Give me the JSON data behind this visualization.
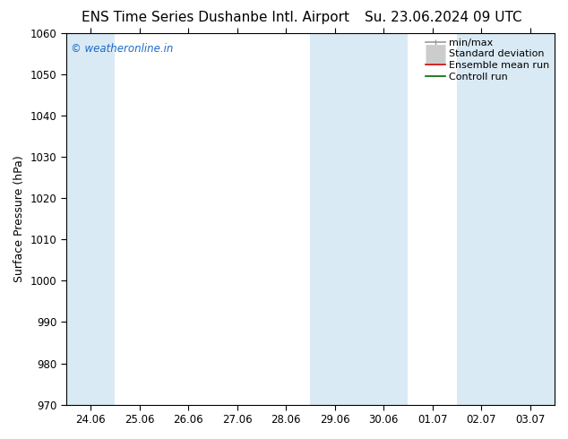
{
  "title_left": "ENS Time Series Dushanbe Intl. Airport",
  "title_right": "Su. 23.06.2024 09 UTC",
  "ylabel": "Surface Pressure (hPa)",
  "ylim": [
    970,
    1060
  ],
  "yticks": [
    970,
    980,
    990,
    1000,
    1010,
    1020,
    1030,
    1040,
    1050,
    1060
  ],
  "x_tick_labels": [
    "24.06",
    "25.06",
    "26.06",
    "27.06",
    "28.06",
    "29.06",
    "30.06",
    "01.07",
    "02.07",
    "03.07"
  ],
  "shaded_col_indices": [
    0,
    5,
    6,
    8,
    9
  ],
  "shade_color": "#daeaf5",
  "background_color": "#ffffff",
  "watermark_text": "© weatheronline.in",
  "watermark_color": "#1a6bc4",
  "legend_entries": [
    {
      "label": "min/max",
      "color": "#999999",
      "lw": 1.2
    },
    {
      "label": "Standard deviation",
      "color": "#cccccc",
      "lw": 5
    },
    {
      "label": "Ensemble mean run",
      "color": "#cc0000",
      "lw": 1.2
    },
    {
      "label": "Controll run",
      "color": "#006600",
      "lw": 1.2
    }
  ],
  "title_fontsize": 11,
  "tick_fontsize": 8.5,
  "ylabel_fontsize": 9,
  "legend_fontsize": 8
}
